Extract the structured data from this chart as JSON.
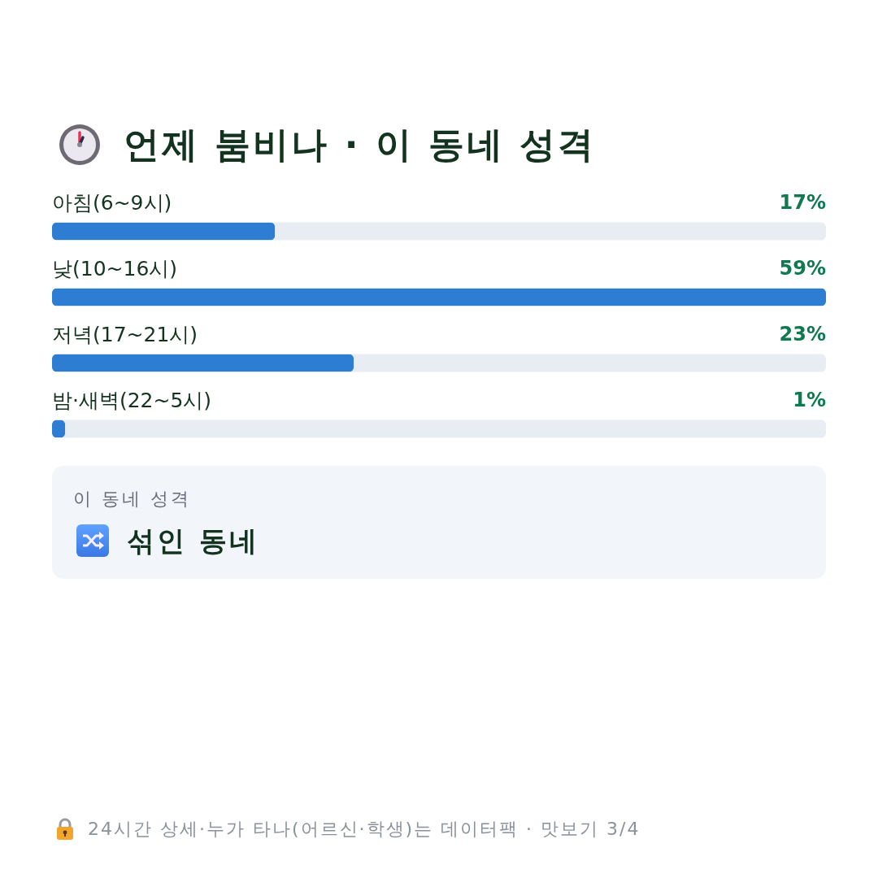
{
  "chart_data": [
    {
      "type": "bar",
      "orientation": "horizontal",
      "title": "언제 붐비나 · 이 동네 성격",
      "categories": [
        "아침(6~9시)",
        "낮(10~16시)",
        "저녁(17~21시)",
        "밤·새벽(22~5시)"
      ],
      "values": [
        17,
        59,
        23,
        1
      ],
      "value_labels": [
        "17%",
        "59%",
        "23%",
        "1%"
      ],
      "color": "#2d7dd2",
      "xlim": [
        0,
        59
      ],
      "tick_labels": false,
      "annotations": [
        "24시간 상세·누가 타나(어르신·학생)는 데이터팩 · 맛보기 3/4"
      ]
    },
    {
      "type": "other",
      "title": "이 동네 성격",
      "annotations": [
        "섞인 동네"
      ]
    }
  ]
}
